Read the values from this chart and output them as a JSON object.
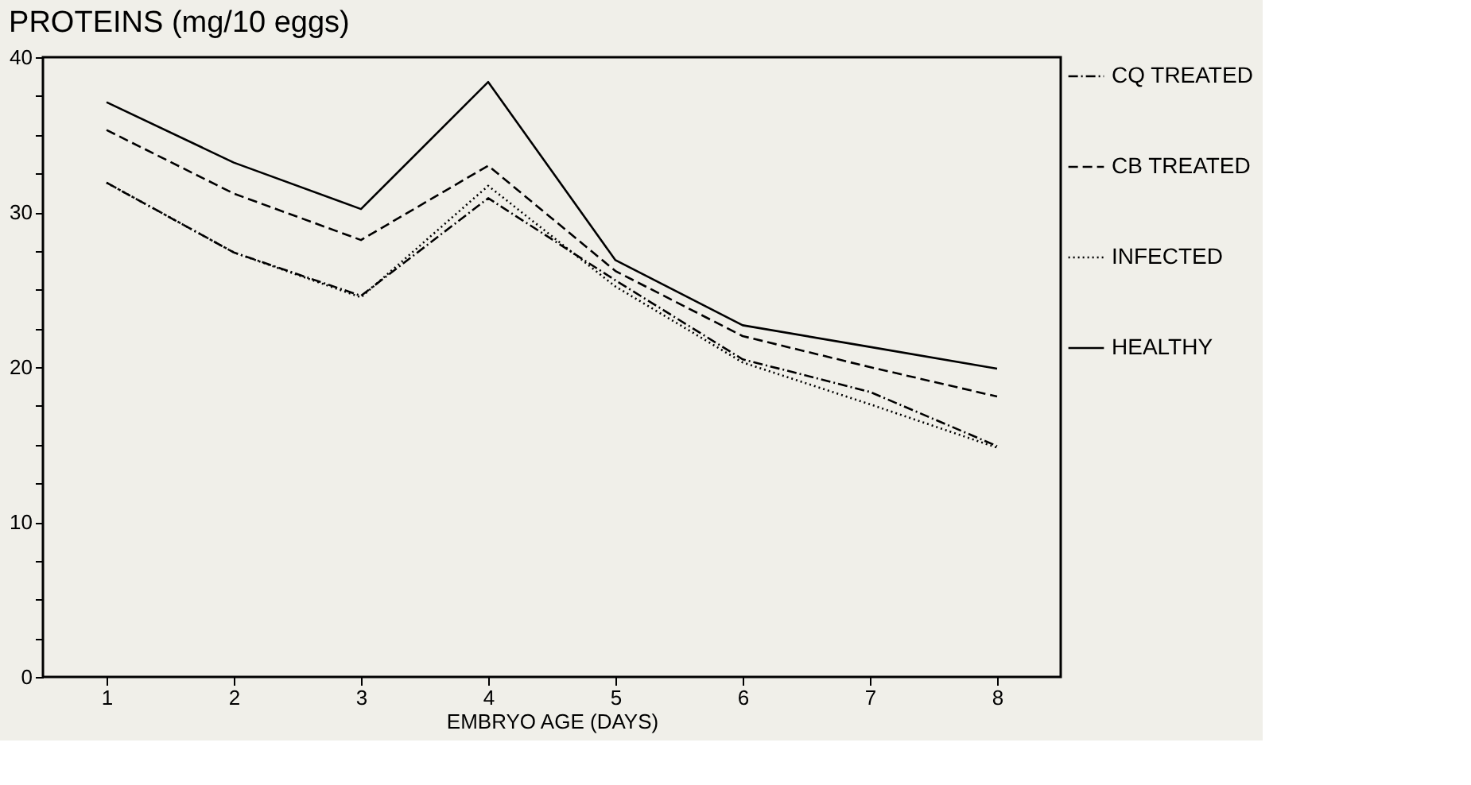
{
  "chart_data": {
    "type": "line",
    "title": "PROTEINS (mg/10 eggs)",
    "xlabel": "EMBRYO AGE (DAYS)",
    "x": [
      1,
      2,
      3,
      4,
      5,
      6,
      7,
      8
    ],
    "series": [
      {
        "name": "CQ TREATED",
        "color": "#000000",
        "line_style": "dashdot",
        "values": [
          31.9,
          27.4,
          24.6,
          30.9,
          25.6,
          20.5,
          18.4,
          14.9
        ]
      },
      {
        "name": "CB TREATED",
        "color": "#000000",
        "line_style": "dashed",
        "values": [
          35.3,
          31.2,
          28.2,
          33.0,
          26.2,
          22.0,
          20.0,
          18.1
        ]
      },
      {
        "name": "INFECTED",
        "color": "#000000",
        "line_style": "dotted",
        "values": [
          31.9,
          27.4,
          24.5,
          31.7,
          25.2,
          20.3,
          17.6,
          14.8
        ]
      },
      {
        "name": "HEALTHY",
        "color": "#000000",
        "line_style": "solid",
        "values": [
          37.1,
          33.2,
          30.2,
          38.4,
          26.9,
          22.7,
          21.3,
          19.9
        ]
      }
    ],
    "xlim": [
      0.5,
      8.5
    ],
    "xticks": [
      1,
      2,
      3,
      4,
      5,
      6,
      7,
      8
    ],
    "ylim": [
      0,
      40
    ],
    "yticks": [
      0,
      {
        "value": 2.5,
        "label": null
      },
      {
        "value": 5,
        "label": null
      },
      {
        "value": 7.5,
        "label": null
      },
      10,
      {
        "value": 12.5,
        "label": null
      },
      {
        "value": 15,
        "label": null
      },
      {
        "value": 17.5,
        "label": null
      },
      20,
      {
        "value": 22.5,
        "label": null
      },
      {
        "value": 25,
        "label": null
      },
      {
        "value": 27.5,
        "label": null
      },
      30,
      {
        "value": 32.5,
        "label": null
      },
      {
        "value": 35,
        "label": null
      },
      {
        "value": 37.5,
        "label": null
      },
      40
    ],
    "grid": false,
    "legend": "right",
    "marker": "none"
  }
}
